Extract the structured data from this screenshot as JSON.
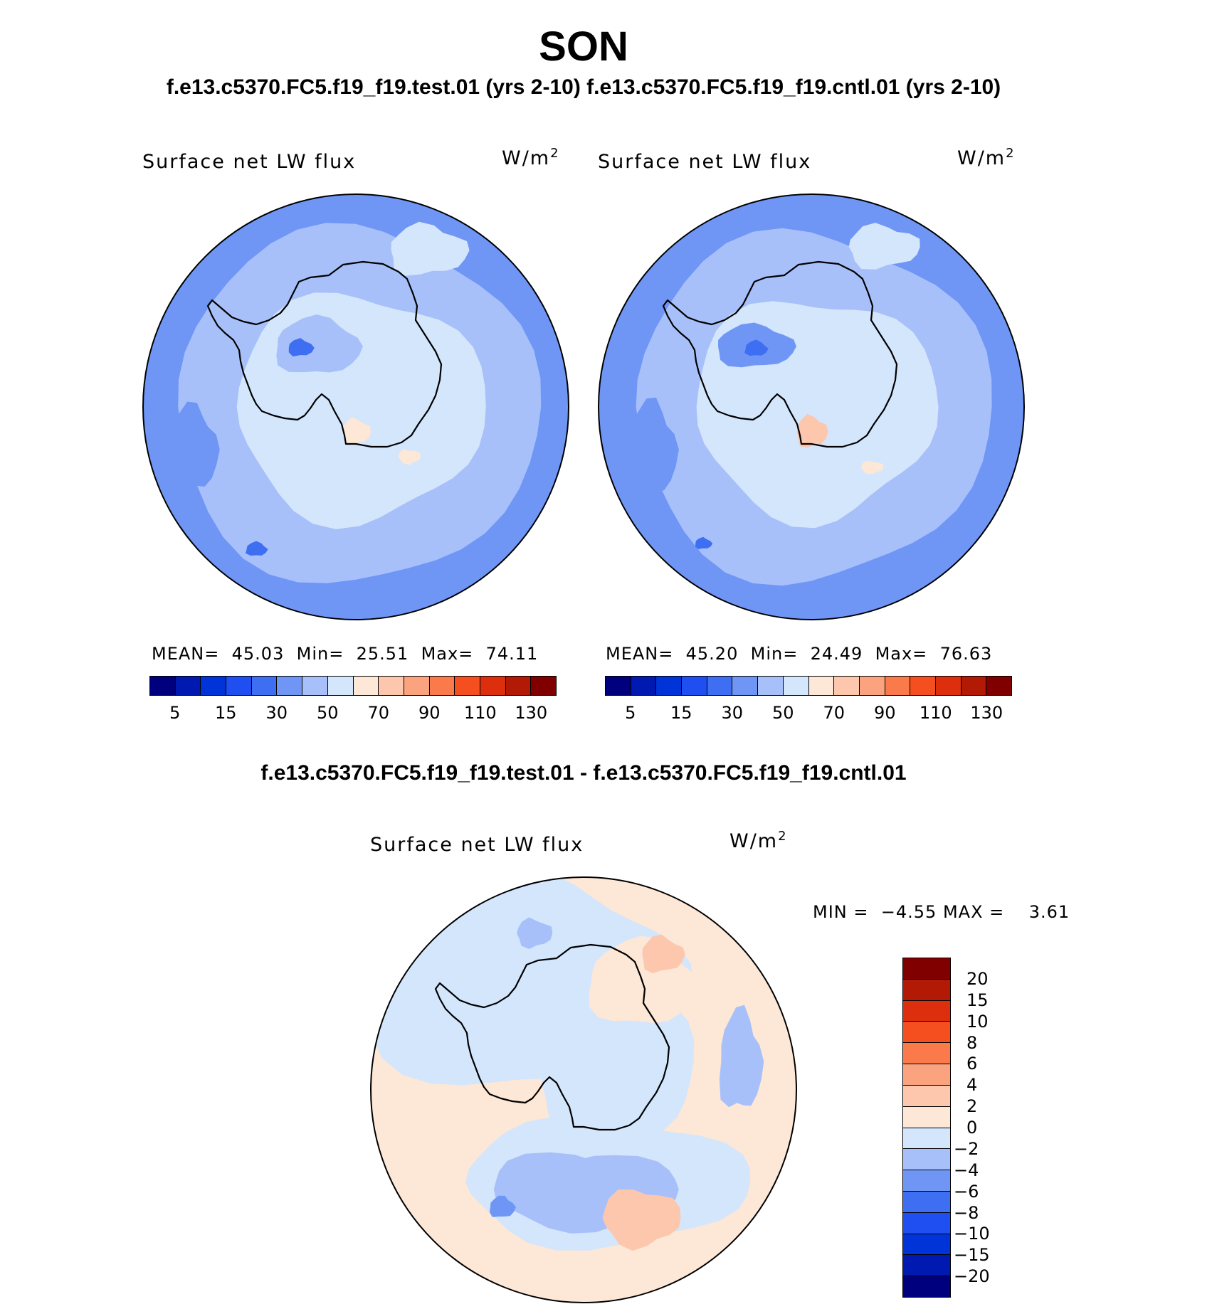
{
  "figure": {
    "title": "SON",
    "subtitle": "f.e13.c5370.FC5.f19_f19.test.01 (yrs 2-10) f.e13.c5370.FC5.f19_f19.cntl.01 (yrs 2-10)",
    "diff_title": "f.e13.c5370.FC5.f19_f19.test.01 - f.e13.c5370.FC5.f19_f19.cntl.01"
  },
  "chart_data": [
    {
      "type": "heatmap",
      "projection": "south polar stereographic",
      "title": "Surface net LW flux",
      "units_base": "W/m",
      "units_exp": "2",
      "stats": {
        "mean_label": "MEAN=",
        "mean": "45.03",
        "min_label": "Min=",
        "min": "25.51",
        "max_label": "Max=",
        "max": "74.11"
      },
      "colorbar": {
        "orientation": "horizontal",
        "tick_labels": [
          "5",
          "15",
          "30",
          "50",
          "70",
          "90",
          "110",
          "130"
        ],
        "colors": [
          "#00007e",
          "#0019b0",
          "#0033d8",
          "#1f4ff0",
          "#3e6ef2",
          "#6f96f5",
          "#a8c0fa",
          "#d4e6fc",
          "#fde7d6",
          "#fcc7ad",
          "#fba27e",
          "#fa7a4b",
          "#f54e1f",
          "#dd2f0d",
          "#b21a05",
          "#800000"
        ]
      }
    },
    {
      "type": "heatmap",
      "projection": "south polar stereographic",
      "title": "Surface net LW flux",
      "units_base": "W/m",
      "units_exp": "2",
      "stats": {
        "mean_label": "MEAN=",
        "mean": "45.20",
        "min_label": "Min=",
        "min": "24.49",
        "max_label": "Max=",
        "max": "76.63"
      },
      "colorbar": {
        "orientation": "horizontal",
        "tick_labels": [
          "5",
          "15",
          "30",
          "50",
          "70",
          "90",
          "110",
          "130"
        ],
        "colors": [
          "#00007e",
          "#0019b0",
          "#0033d8",
          "#1f4ff0",
          "#3e6ef2",
          "#6f96f5",
          "#a8c0fa",
          "#d4e6fc",
          "#fde7d6",
          "#fcc7ad",
          "#fba27e",
          "#fa7a4b",
          "#f54e1f",
          "#dd2f0d",
          "#b21a05",
          "#800000"
        ]
      }
    },
    {
      "type": "heatmap",
      "projection": "south polar stereographic",
      "title": "Surface net LW flux",
      "units_base": "W/m",
      "units_exp": "2",
      "stats": {
        "min_label": "MIN =",
        "min": "−4.55",
        "max_label": "MAX =",
        "max": "3.61"
      },
      "colorbar": {
        "orientation": "vertical",
        "tick_labels": [
          "20",
          "15",
          "10",
          "8",
          "6",
          "4",
          "2",
          "0",
          "−2",
          "−4",
          "−6",
          "−8",
          "−10",
          "−15",
          "−20"
        ],
        "colors": [
          "#800000",
          "#b21a05",
          "#dd2f0d",
          "#f54e1f",
          "#fa7a4b",
          "#fba27e",
          "#fcc7ad",
          "#fde7d6",
          "#d4e6fc",
          "#a8c0fa",
          "#6f96f5",
          "#3e6ef2",
          "#1f4ff0",
          "#0033d8",
          "#0019b0",
          "#00007e"
        ]
      }
    }
  ]
}
